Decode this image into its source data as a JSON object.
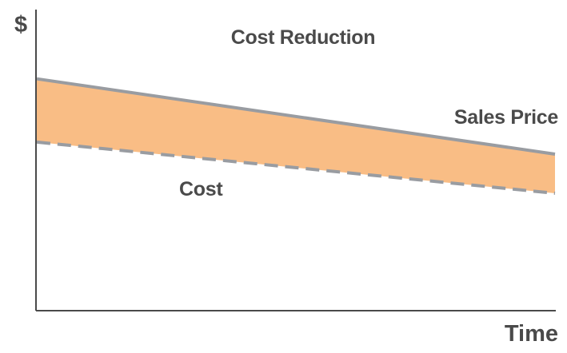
{
  "chart_data": {
    "type": "area",
    "title": "Cost Reduction",
    "xlabel": "Time",
    "ylabel": "$",
    "x": [
      0,
      1
    ],
    "xlim": [
      0,
      1
    ],
    "ylim": [
      0,
      1
    ],
    "grid": false,
    "legend": "none",
    "series": [
      {
        "name": "Sales Price",
        "line_style": "solid",
        "color": "#999ca1",
        "values": [
          0.77,
          0.52
        ]
      },
      {
        "name": "Cost",
        "line_style": "dashed",
        "color": "#999ca1",
        "values": [
          0.56,
          0.39
        ]
      }
    ],
    "band_fill_color": "#f9bd85",
    "axis_color": "#4a4a4a"
  }
}
